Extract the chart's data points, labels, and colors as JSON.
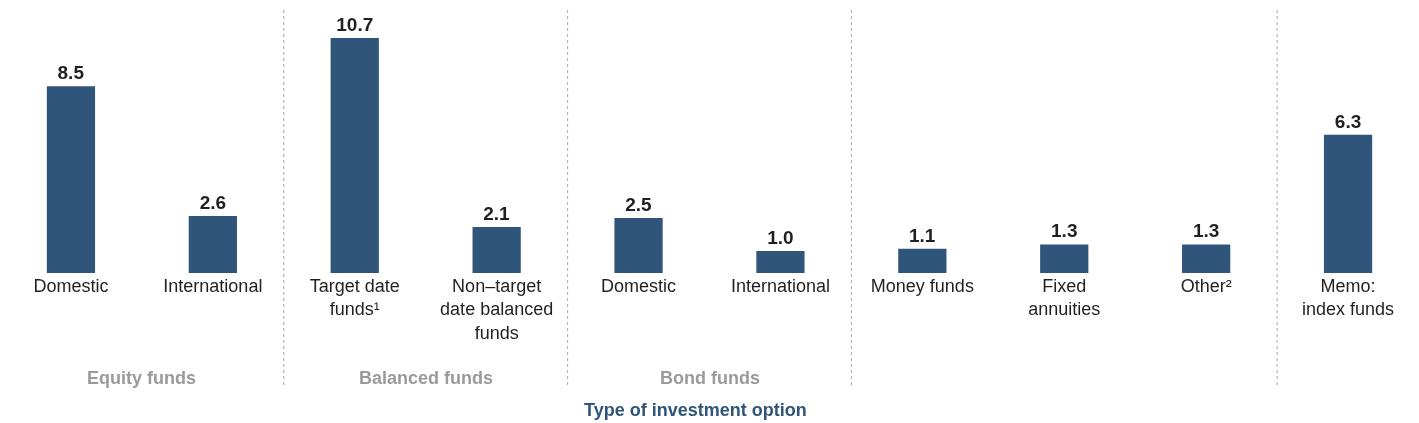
{
  "chart_data": {
    "type": "bar",
    "xlabel": "Type of investment option",
    "categories": [
      "Domestic",
      "International",
      "Target date\nfunds¹",
      "Non–target\ndate balanced\nfunds",
      "Domestic",
      "International",
      "Money funds",
      "Fixed\nannuities",
      "Other²",
      "Memo:\nindex funds"
    ],
    "values": [
      8.5,
      2.6,
      10.7,
      2.1,
      2.5,
      1.0,
      1.1,
      1.3,
      1.3,
      6.3
    ],
    "value_labels": [
      "8.5",
      "2.6",
      "10.7",
      "2.1",
      "2.5",
      "1.0",
      "1.1",
      "1.3",
      "1.3",
      "6.3"
    ],
    "color": "#2f557a",
    "annotations": [
      "Equity funds",
      "Balanced funds",
      "Bond funds"
    ]
  }
}
